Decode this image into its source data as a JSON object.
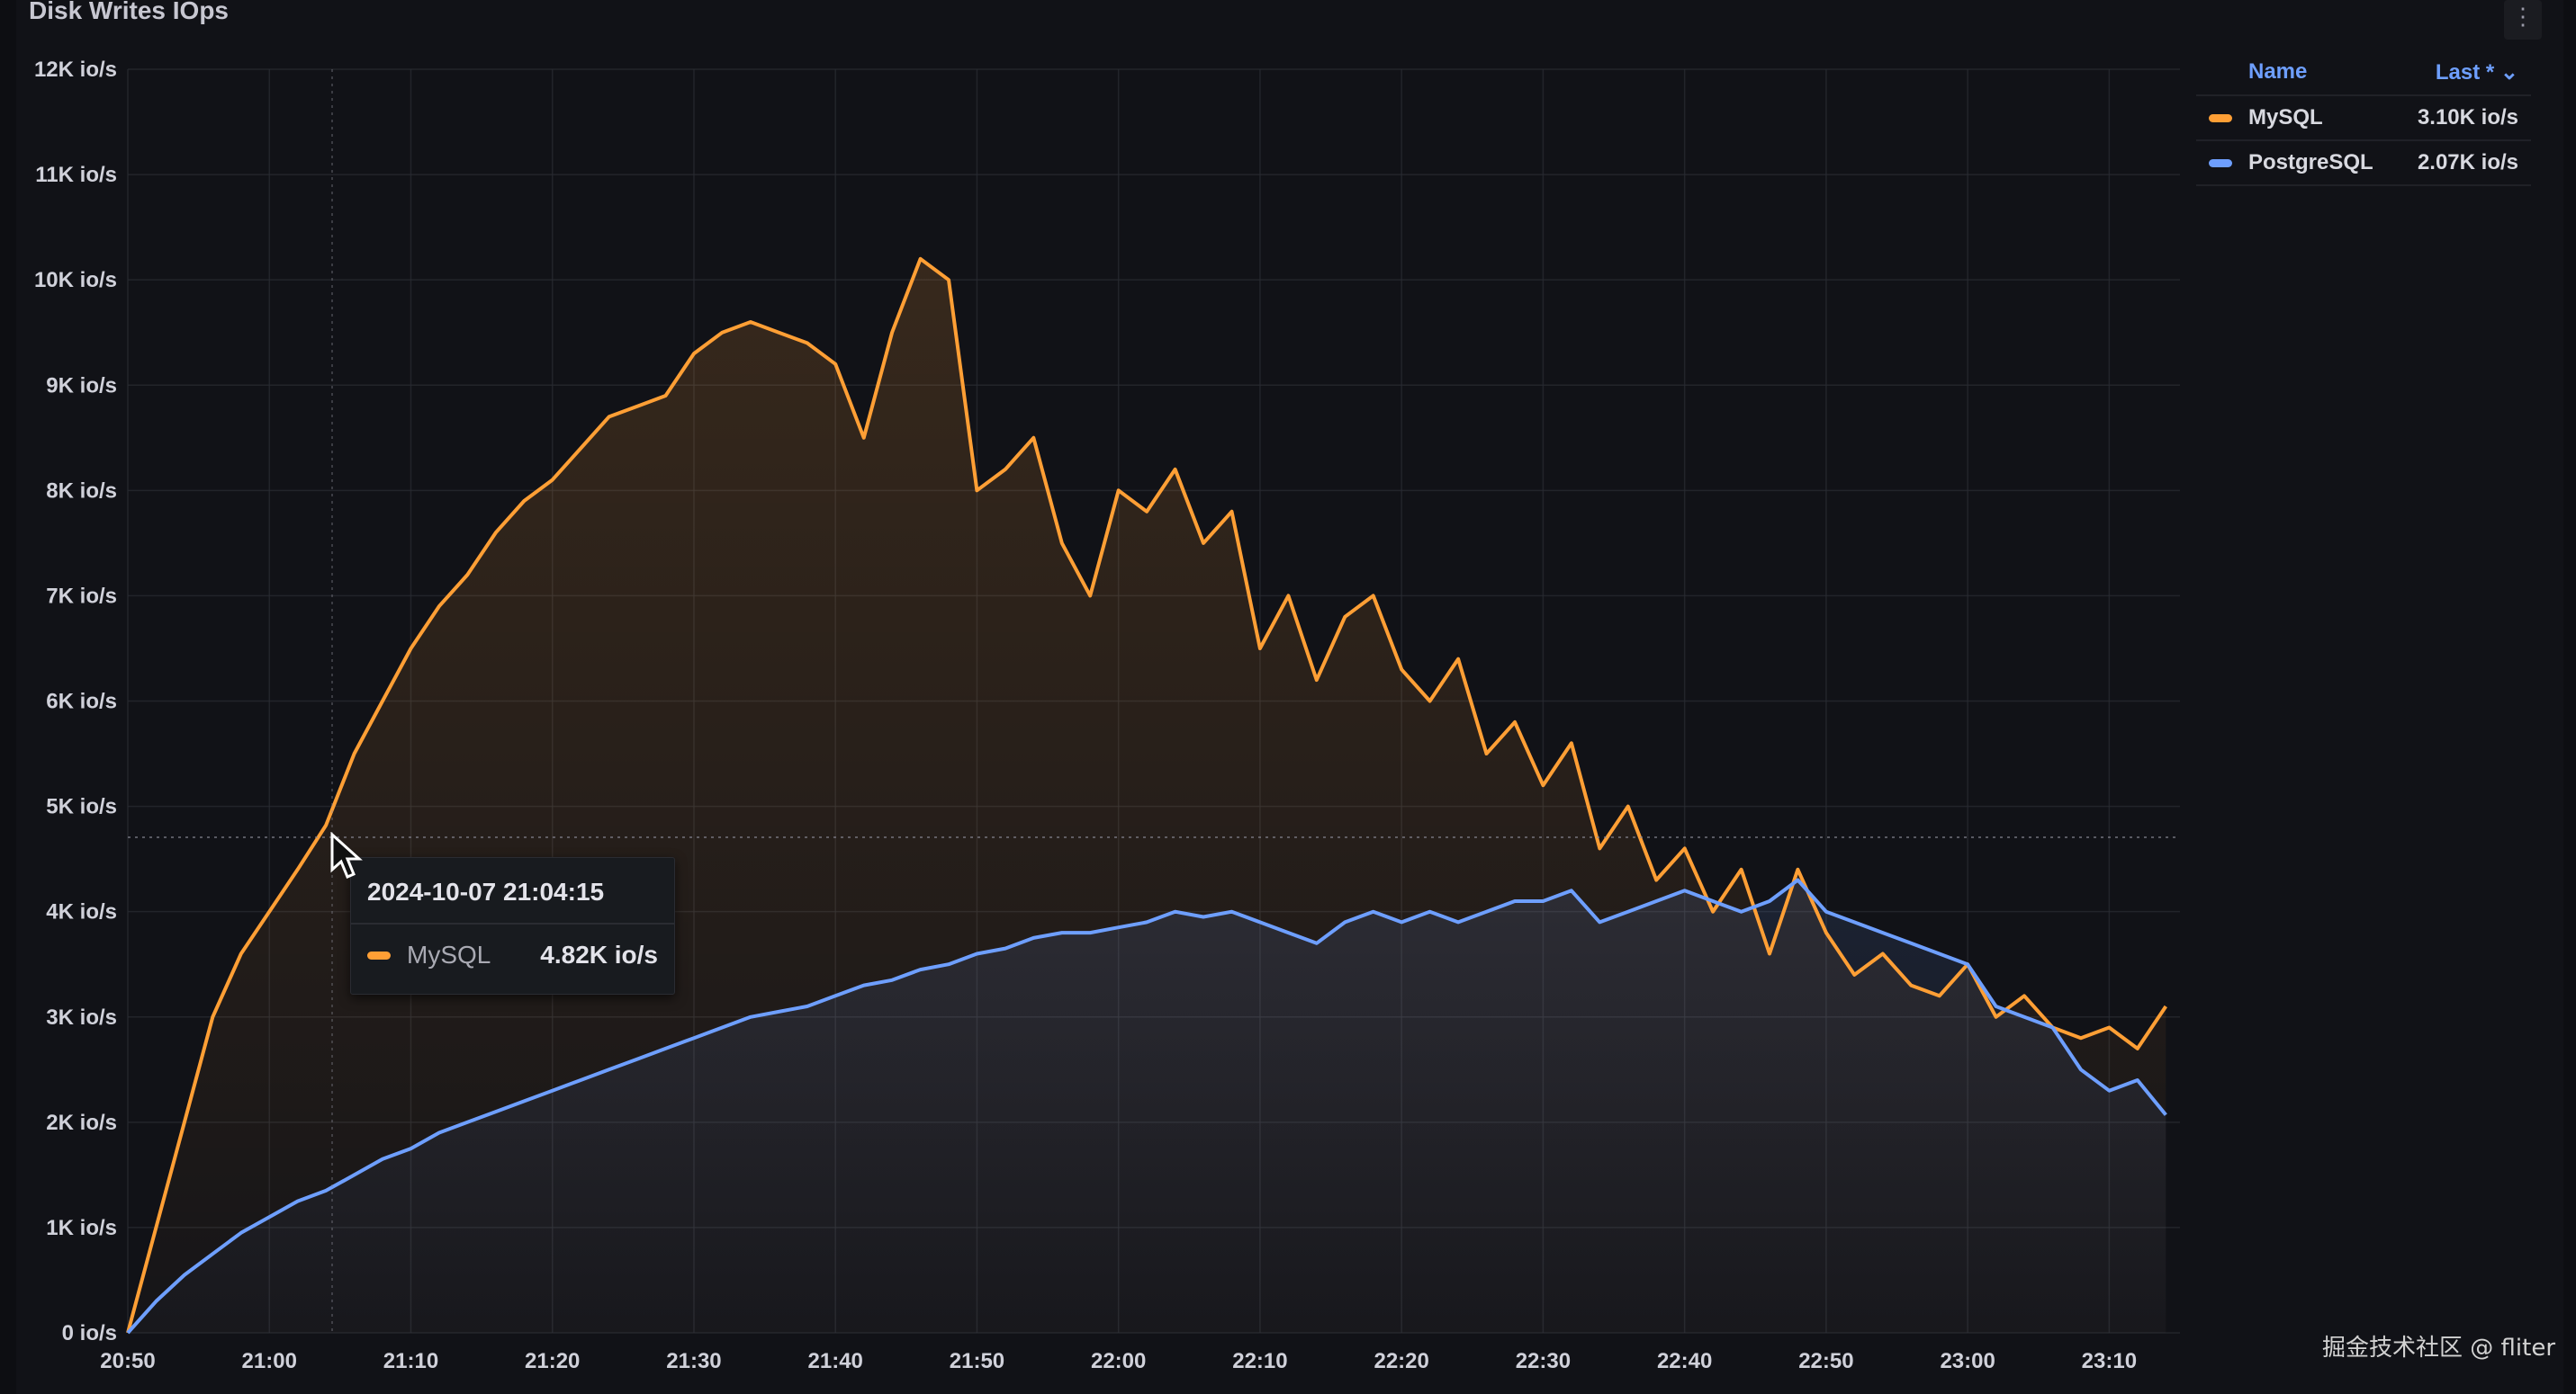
{
  "panel": {
    "title": "Disk Writes IOps",
    "menu_icon": "kebab-menu-icon"
  },
  "legend": {
    "header_name": "Name",
    "header_value": "Last * ⌄",
    "items": [
      {
        "name": "MySQL",
        "value": "3.10K io/s",
        "color": "#ff9f35"
      },
      {
        "name": "PostgreSQL",
        "value": "2.07K io/s",
        "color": "#6e9fff"
      }
    ]
  },
  "tooltip": {
    "time": "2024-10-07 21:04:15",
    "series": "MySQL",
    "value": "4.82K io/s",
    "color": "#ff9f35"
  },
  "watermark": "掘金技术社区 @ fliter",
  "chart_data": {
    "type": "line",
    "title": "Disk Writes IOps",
    "xlabel": "",
    "ylabel": "",
    "y_unit": "K io/s",
    "ylim": [
      0,
      12
    ],
    "y_ticks": [
      "0 io/s",
      "1K io/s",
      "2K io/s",
      "3K io/s",
      "4K io/s",
      "5K io/s",
      "6K io/s",
      "7K io/s",
      "8K io/s",
      "9K io/s",
      "10K io/s",
      "11K io/s",
      "12K io/s"
    ],
    "x_ticks": [
      "20:50",
      "21:00",
      "21:10",
      "21:20",
      "21:30",
      "21:40",
      "21:50",
      "22:00",
      "22:10",
      "22:20",
      "22:30",
      "22:40",
      "22:50",
      "23:00",
      "23:10"
    ],
    "xlim": [
      "20:50",
      "23:15"
    ],
    "grid": true,
    "legend_placement": "right",
    "fill": "gradient-area",
    "x": [
      "20:50",
      "20:52",
      "20:54",
      "20:56",
      "20:58",
      "21:00",
      "21:02",
      "21:04",
      "21:06",
      "21:08",
      "21:10",
      "21:12",
      "21:14",
      "21:16",
      "21:18",
      "21:20",
      "21:22",
      "21:24",
      "21:26",
      "21:28",
      "21:30",
      "21:32",
      "21:34",
      "21:36",
      "21:38",
      "21:40",
      "21:42",
      "21:44",
      "21:46",
      "21:48",
      "21:50",
      "21:52",
      "21:54",
      "21:56",
      "21:58",
      "22:00",
      "22:02",
      "22:04",
      "22:06",
      "22:08",
      "22:10",
      "22:12",
      "22:14",
      "22:16",
      "22:18",
      "22:20",
      "22:22",
      "22:24",
      "22:26",
      "22:28",
      "22:30",
      "22:32",
      "22:34",
      "22:36",
      "22:38",
      "22:40",
      "22:42",
      "22:44",
      "22:46",
      "22:48",
      "22:50",
      "22:52",
      "22:54",
      "22:56",
      "22:58",
      "23:00",
      "23:02",
      "23:04",
      "23:06",
      "23:08",
      "23:10",
      "23:12",
      "23:14"
    ],
    "series": [
      {
        "name": "MySQL",
        "color": "#ff9f35",
        "values": [
          0,
          1.0,
          2.0,
          3.0,
          3.6,
          4.0,
          4.4,
          4.82,
          5.5,
          6.0,
          6.5,
          6.9,
          7.2,
          7.6,
          7.9,
          8.1,
          8.4,
          8.7,
          8.8,
          8.9,
          9.3,
          9.5,
          9.6,
          9.5,
          9.4,
          9.2,
          8.5,
          9.5,
          10.2,
          10.0,
          8.0,
          8.2,
          8.5,
          7.5,
          7.0,
          8.0,
          7.8,
          8.2,
          7.5,
          7.8,
          6.5,
          7.0,
          6.2,
          6.8,
          7.0,
          6.3,
          6.0,
          6.4,
          5.5,
          5.8,
          5.2,
          5.6,
          4.6,
          5.0,
          4.3,
          4.6,
          4.0,
          4.4,
          3.6,
          4.4,
          3.8,
          3.4,
          3.6,
          3.3,
          3.2,
          3.5,
          3.0,
          3.2,
          2.9,
          2.8,
          2.9,
          2.7,
          3.1
        ]
      },
      {
        "name": "PostgreSQL",
        "color": "#6e9fff",
        "values": [
          0,
          0.3,
          0.55,
          0.75,
          0.95,
          1.1,
          1.25,
          1.35,
          1.5,
          1.65,
          1.75,
          1.9,
          2.0,
          2.1,
          2.2,
          2.3,
          2.4,
          2.5,
          2.6,
          2.7,
          2.8,
          2.9,
          3.0,
          3.05,
          3.1,
          3.2,
          3.3,
          3.35,
          3.45,
          3.5,
          3.6,
          3.65,
          3.75,
          3.8,
          3.8,
          3.85,
          3.9,
          4.0,
          3.95,
          4.0,
          3.9,
          3.8,
          3.7,
          3.9,
          4.0,
          3.9,
          4.0,
          3.9,
          4.0,
          4.1,
          4.1,
          4.2,
          3.9,
          4.0,
          4.1,
          4.2,
          4.1,
          4.0,
          4.1,
          4.3,
          4.0,
          3.9,
          3.8,
          3.7,
          3.6,
          3.5,
          3.1,
          3.0,
          2.9,
          2.5,
          2.3,
          2.4,
          2.07
        ]
      }
    ]
  }
}
